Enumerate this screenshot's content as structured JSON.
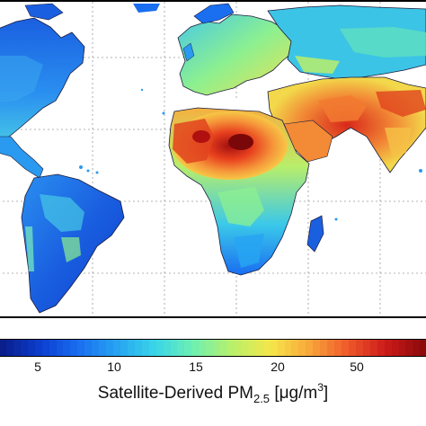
{
  "map": {
    "variable": "PM2.5",
    "scale_colors": [
      "#0a1e8c",
      "#0c3fd0",
      "#1a6ef0",
      "#27a4f2",
      "#3ad6e8",
      "#6ff0b0",
      "#b8f06a",
      "#f5e64a",
      "#f8a83a",
      "#f05a2a",
      "#cc1a1a",
      "#8c0a0a"
    ]
  },
  "legend": {
    "ticks": [
      "5",
      "10",
      "15",
      "20",
      "50"
    ],
    "caption_main": "Satellite-Derived PM",
    "caption_sub": "2.5",
    "caption_units_open": " [μg/m",
    "caption_units_sup": "3",
    "caption_units_close": "]"
  }
}
